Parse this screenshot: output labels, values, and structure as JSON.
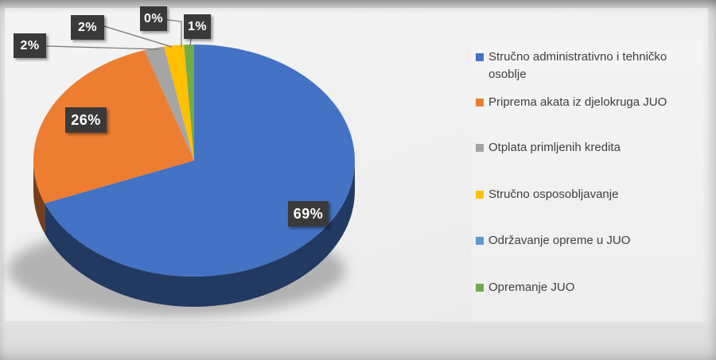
{
  "chart_data": {
    "type": "pie",
    "style": "3d",
    "title": "",
    "legend_position": "right",
    "direction": "clockwise",
    "start_angle": "top",
    "categories": [
      "Stručno administrativno i tehničko osoblje",
      "Priprema akata iz djelokruga JUO",
      "Otplata primljenih kredita",
      "Stručno osposobljavanje",
      "Održavanje opreme u JUO",
      "Opremanje JUO"
    ],
    "values": [
      69,
      26,
      2,
      2,
      0,
      1
    ],
    "data_labels": [
      "69%",
      "26%",
      "2%",
      "2%",
      "0%",
      "1%"
    ],
    "colors": [
      "#4472c4",
      "#ed7d31",
      "#a5a5a5",
      "#ffc000",
      "#5b9bd5",
      "#70ad47"
    ],
    "label_box_color": "#3a3a3a",
    "label_text_color": "#ffffff",
    "leader_line_color": "#757575"
  }
}
